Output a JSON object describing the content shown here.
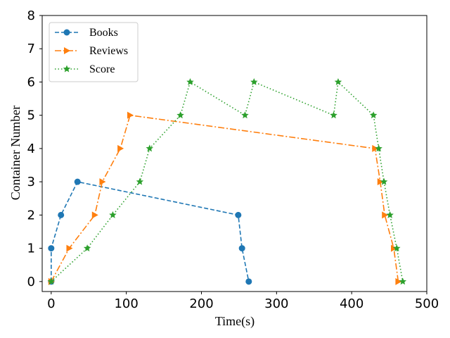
{
  "chart_data": {
    "type": "line",
    "title": "",
    "xlabel": "Time(s)",
    "ylabel": "Container Number",
    "xlim": [
      -12,
      500
    ],
    "ylim": [
      -0.3,
      8
    ],
    "xticks": [
      0,
      100,
      200,
      300,
      400,
      500
    ],
    "yticks": [
      0,
      1,
      2,
      3,
      4,
      5,
      6,
      7,
      8
    ],
    "grid": false,
    "legend_position": "top-left",
    "series": [
      {
        "name": "Books",
        "color": "#1f77b4",
        "linestyle": "dashed",
        "marker": "circle",
        "x": [
          0,
          0,
          13,
          35,
          249,
          254,
          263
        ],
        "y": [
          0,
          1,
          2,
          3,
          2,
          1,
          0
        ]
      },
      {
        "name": "Reviews",
        "color": "#ff7f0e",
        "linestyle": "dashdot",
        "marker": "triangle-right",
        "x": [
          0,
          24,
          58,
          68,
          92,
          105,
          431,
          438,
          444,
          456,
          462
        ],
        "y": [
          0,
          1,
          2,
          3,
          4,
          5,
          4,
          3,
          2,
          1,
          0
        ]
      },
      {
        "name": "Score",
        "color": "#2ca02c",
        "linestyle": "dotted",
        "marker": "star",
        "x": [
          0,
          48,
          82,
          118,
          131,
          172,
          185,
          258,
          270,
          376,
          382,
          429,
          436,
          443,
          451,
          460,
          468
        ],
        "y": [
          0,
          1,
          2,
          3,
          4,
          5,
          6,
          5,
          6,
          5,
          6,
          5,
          4,
          3,
          2,
          1,
          0
        ]
      }
    ]
  }
}
